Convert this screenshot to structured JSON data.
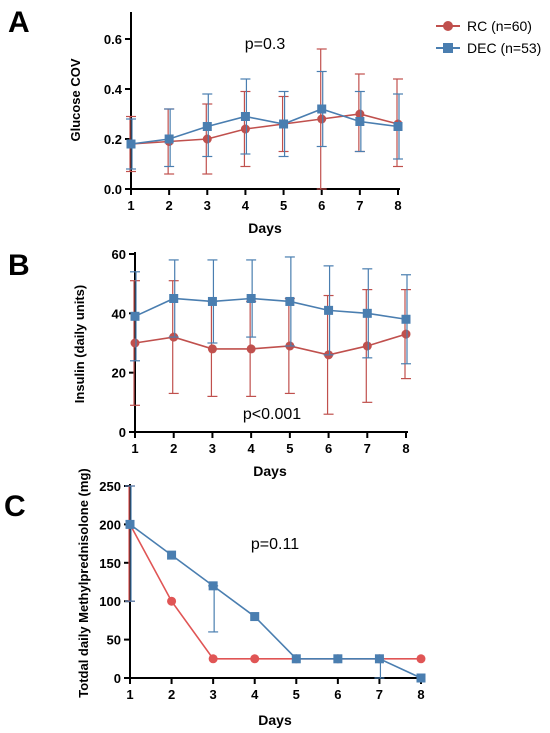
{
  "legend": {
    "placement": "top-right",
    "entries": [
      {
        "label": "RC (n=60)",
        "color": "#c0504d",
        "marker": "circle"
      },
      {
        "label": "DEC (n=53)",
        "color": "#4a7eb0",
        "marker": "square"
      }
    ]
  },
  "chart_data": [
    {
      "panel_label": "A",
      "type": "line",
      "title": "",
      "xlabel": "Days",
      "ylabel": "Glucose COV",
      "annotation": "p=0.3",
      "x": [
        1,
        2,
        3,
        4,
        5,
        6,
        7,
        8
      ],
      "xlim": [
        1,
        8
      ],
      "ylim": [
        0,
        0.7
      ],
      "yticks": [
        0.0,
        0.2,
        0.4,
        0.6
      ],
      "ytick_labels": [
        "0.0",
        "0.2",
        "0.4",
        "0.6"
      ],
      "xtick_labels": [
        "1",
        "2",
        "3",
        "4",
        "5",
        "6",
        "7",
        "8"
      ],
      "grid": false,
      "error_bars": true,
      "series": [
        {
          "name": "RC (n=60)",
          "color": "#c0504d",
          "marker": "circle",
          "values": [
            0.18,
            0.19,
            0.2,
            0.24,
            0.26,
            0.28,
            0.3,
            0.26
          ],
          "err_low": [
            0.11,
            0.13,
            0.14,
            0.15,
            0.11,
            0.28,
            0.15,
            0.17
          ],
          "err_high": [
            0.11,
            0.13,
            0.14,
            0.15,
            0.11,
            0.28,
            0.16,
            0.18
          ]
        },
        {
          "name": "DEC (n=53)",
          "color": "#4a7eb0",
          "marker": "square",
          "values": [
            0.18,
            0.2,
            0.25,
            0.29,
            0.26,
            0.32,
            0.27,
            0.25
          ],
          "err_low": [
            0.1,
            0.11,
            0.12,
            0.15,
            0.13,
            0.15,
            0.12,
            0.13
          ],
          "err_high": [
            0.1,
            0.12,
            0.13,
            0.15,
            0.13,
            0.15,
            0.12,
            0.13
          ]
        }
      ]
    },
    {
      "panel_label": "B",
      "type": "line",
      "title": "",
      "xlabel": "Days",
      "ylabel": "Insulin (daily units)",
      "annotation": "p<0.001",
      "x": [
        1,
        2,
        3,
        4,
        5,
        6,
        7,
        8
      ],
      "xlim": [
        1,
        8
      ],
      "ylim": [
        0,
        60
      ],
      "yticks": [
        0,
        20,
        40,
        60
      ],
      "ytick_labels": [
        "0",
        "20",
        "40",
        "60"
      ],
      "xtick_labels": [
        "1",
        "2",
        "3",
        "4",
        "5",
        "6",
        "7",
        "8"
      ],
      "grid": false,
      "error_bars": true,
      "series": [
        {
          "name": "RC (n=60)",
          "color": "#c0504d",
          "marker": "circle",
          "values": [
            30,
            32,
            28,
            28,
            29,
            26,
            29,
            33
          ],
          "err_low": [
            21,
            19,
            16,
            16,
            16,
            20,
            19,
            15
          ],
          "err_high": [
            21,
            19,
            16,
            16,
            16,
            20,
            19,
            15
          ]
        },
        {
          "name": "DEC (n=53)",
          "color": "#4a7eb0",
          "marker": "square",
          "values": [
            39,
            45,
            44,
            45,
            44,
            41,
            40,
            38
          ],
          "err_low": [
            15,
            13,
            14,
            13,
            15,
            15,
            15,
            15
          ],
          "err_high": [
            15,
            13,
            14,
            13,
            15,
            15,
            15,
            15
          ]
        }
      ]
    },
    {
      "panel_label": "C",
      "type": "line",
      "title": "",
      "xlabel": "Days",
      "ylabel": "Totdal daily Methylprednisolone (mg)",
      "annotation": "p=0.11",
      "x": [
        1,
        2,
        3,
        4,
        5,
        6,
        7,
        8
      ],
      "xlim": [
        1,
        8
      ],
      "ylim": [
        0,
        250
      ],
      "yticks": [
        0,
        50,
        100,
        150,
        200,
        250
      ],
      "ytick_labels": [
        "0",
        "50",
        "100",
        "150",
        "200",
        "250"
      ],
      "xtick_labels": [
        "1",
        "2",
        "3",
        "4",
        "5",
        "6",
        "7",
        "8"
      ],
      "grid": false,
      "error_bars": true,
      "series": [
        {
          "name": "RC (n=60)",
          "color": "#e05555",
          "marker": "circle",
          "values": [
            200,
            100,
            25,
            25,
            25,
            25,
            25,
            25
          ],
          "err_low": [
            100,
            0,
            0,
            0,
            0,
            0,
            0,
            0
          ],
          "err_high": [
            50,
            0,
            0,
            0,
            0,
            0,
            0,
            0
          ]
        },
        {
          "name": "DEC (n=53)",
          "color": "#4a7eb0",
          "marker": "square",
          "values": [
            200,
            160,
            120,
            80,
            25,
            25,
            25,
            0
          ],
          "err_low": [
            100,
            0,
            60,
            0,
            0,
            0,
            25,
            0
          ],
          "err_high": [
            50,
            0,
            0,
            0,
            0,
            0,
            0,
            0
          ]
        }
      ]
    }
  ]
}
